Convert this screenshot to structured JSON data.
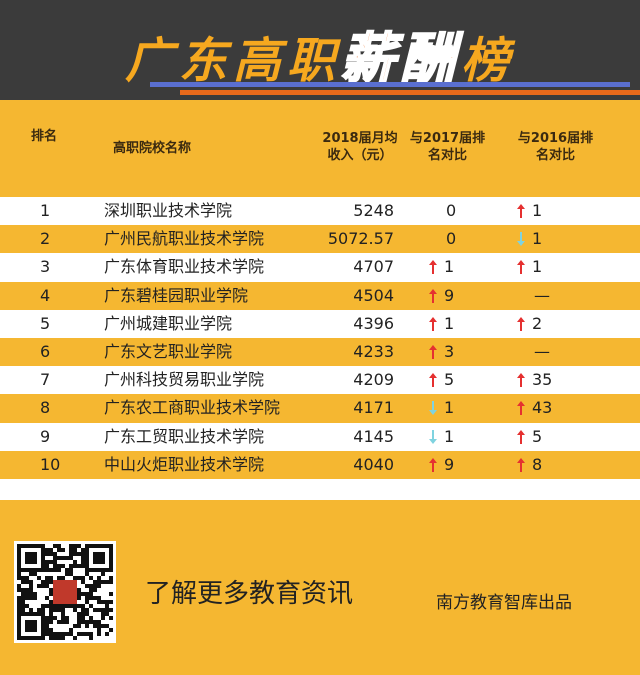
{
  "header": {
    "title": [
      "广东高职",
      "薪酬",
      "榜"
    ]
  },
  "table": {
    "columns": [
      [
        "排名"
      ],
      [
        "高职院校名称"
      ],
      [
        "2018届月均",
        "收入（元）"
      ],
      [
        "与2017届排",
        "名对比"
      ],
      [
        "与2016届排",
        "名对比"
      ]
    ],
    "rows": [
      {
        "rank": "1",
        "name": "深圳职业技术学院",
        "salary": "5248",
        "vs2017": {
          "value": "0"
        },
        "vs2016": {
          "trend": "up",
          "value": "1"
        }
      },
      {
        "rank": "2",
        "name": "广州民航职业技术学院",
        "salary": "5072.57",
        "vs2017": {
          "value": "0"
        },
        "vs2016": {
          "trend": "down",
          "value": "1"
        }
      },
      {
        "rank": "3",
        "name": "广东体育职业技术学院",
        "salary": "4707",
        "vs2017": {
          "trend": "up",
          "value": "1"
        },
        "vs2016": {
          "trend": "up",
          "value": "1"
        }
      },
      {
        "rank": "4",
        "name": "广东碧桂园职业学院",
        "salary": "4504",
        "vs2017": {
          "trend": "up",
          "value": "9"
        },
        "vs2016": {
          "value": "—"
        }
      },
      {
        "rank": "5",
        "name": "广州城建职业学院",
        "salary": "4396",
        "vs2017": {
          "trend": "up",
          "value": "1"
        },
        "vs2016": {
          "trend": "up",
          "value": "2"
        }
      },
      {
        "rank": "6",
        "name": "广东文艺职业学院",
        "salary": "4233",
        "vs2017": {
          "trend": "up",
          "value": "3"
        },
        "vs2016": {
          "value": "—"
        }
      },
      {
        "rank": "7",
        "name": "广州科技贸易职业学院",
        "salary": "4209",
        "vs2017": {
          "trend": "up",
          "value": "5"
        },
        "vs2016": {
          "trend": "up",
          "value": "35"
        }
      },
      {
        "rank": "8",
        "name": "广东农工商职业技术学院",
        "salary": "4171",
        "vs2017": {
          "trend": "down",
          "value": "1"
        },
        "vs2016": {
          "trend": "up",
          "value": "43"
        }
      },
      {
        "rank": "9",
        "name": "广东工贸职业技术学院",
        "salary": "4145",
        "vs2017": {
          "trend": "down",
          "value": "1"
        },
        "vs2016": {
          "trend": "up",
          "value": "5"
        }
      },
      {
        "rank": "10",
        "name": "中山火炬职业技术学院",
        "salary": "4040",
        "vs2017": {
          "trend": "up",
          "value": "9"
        },
        "vs2016": {
          "trend": "up",
          "value": "8"
        }
      }
    ]
  },
  "footer": {
    "slogan": "了解更多教育资讯",
    "publisher": "南方教育智库出品"
  }
}
